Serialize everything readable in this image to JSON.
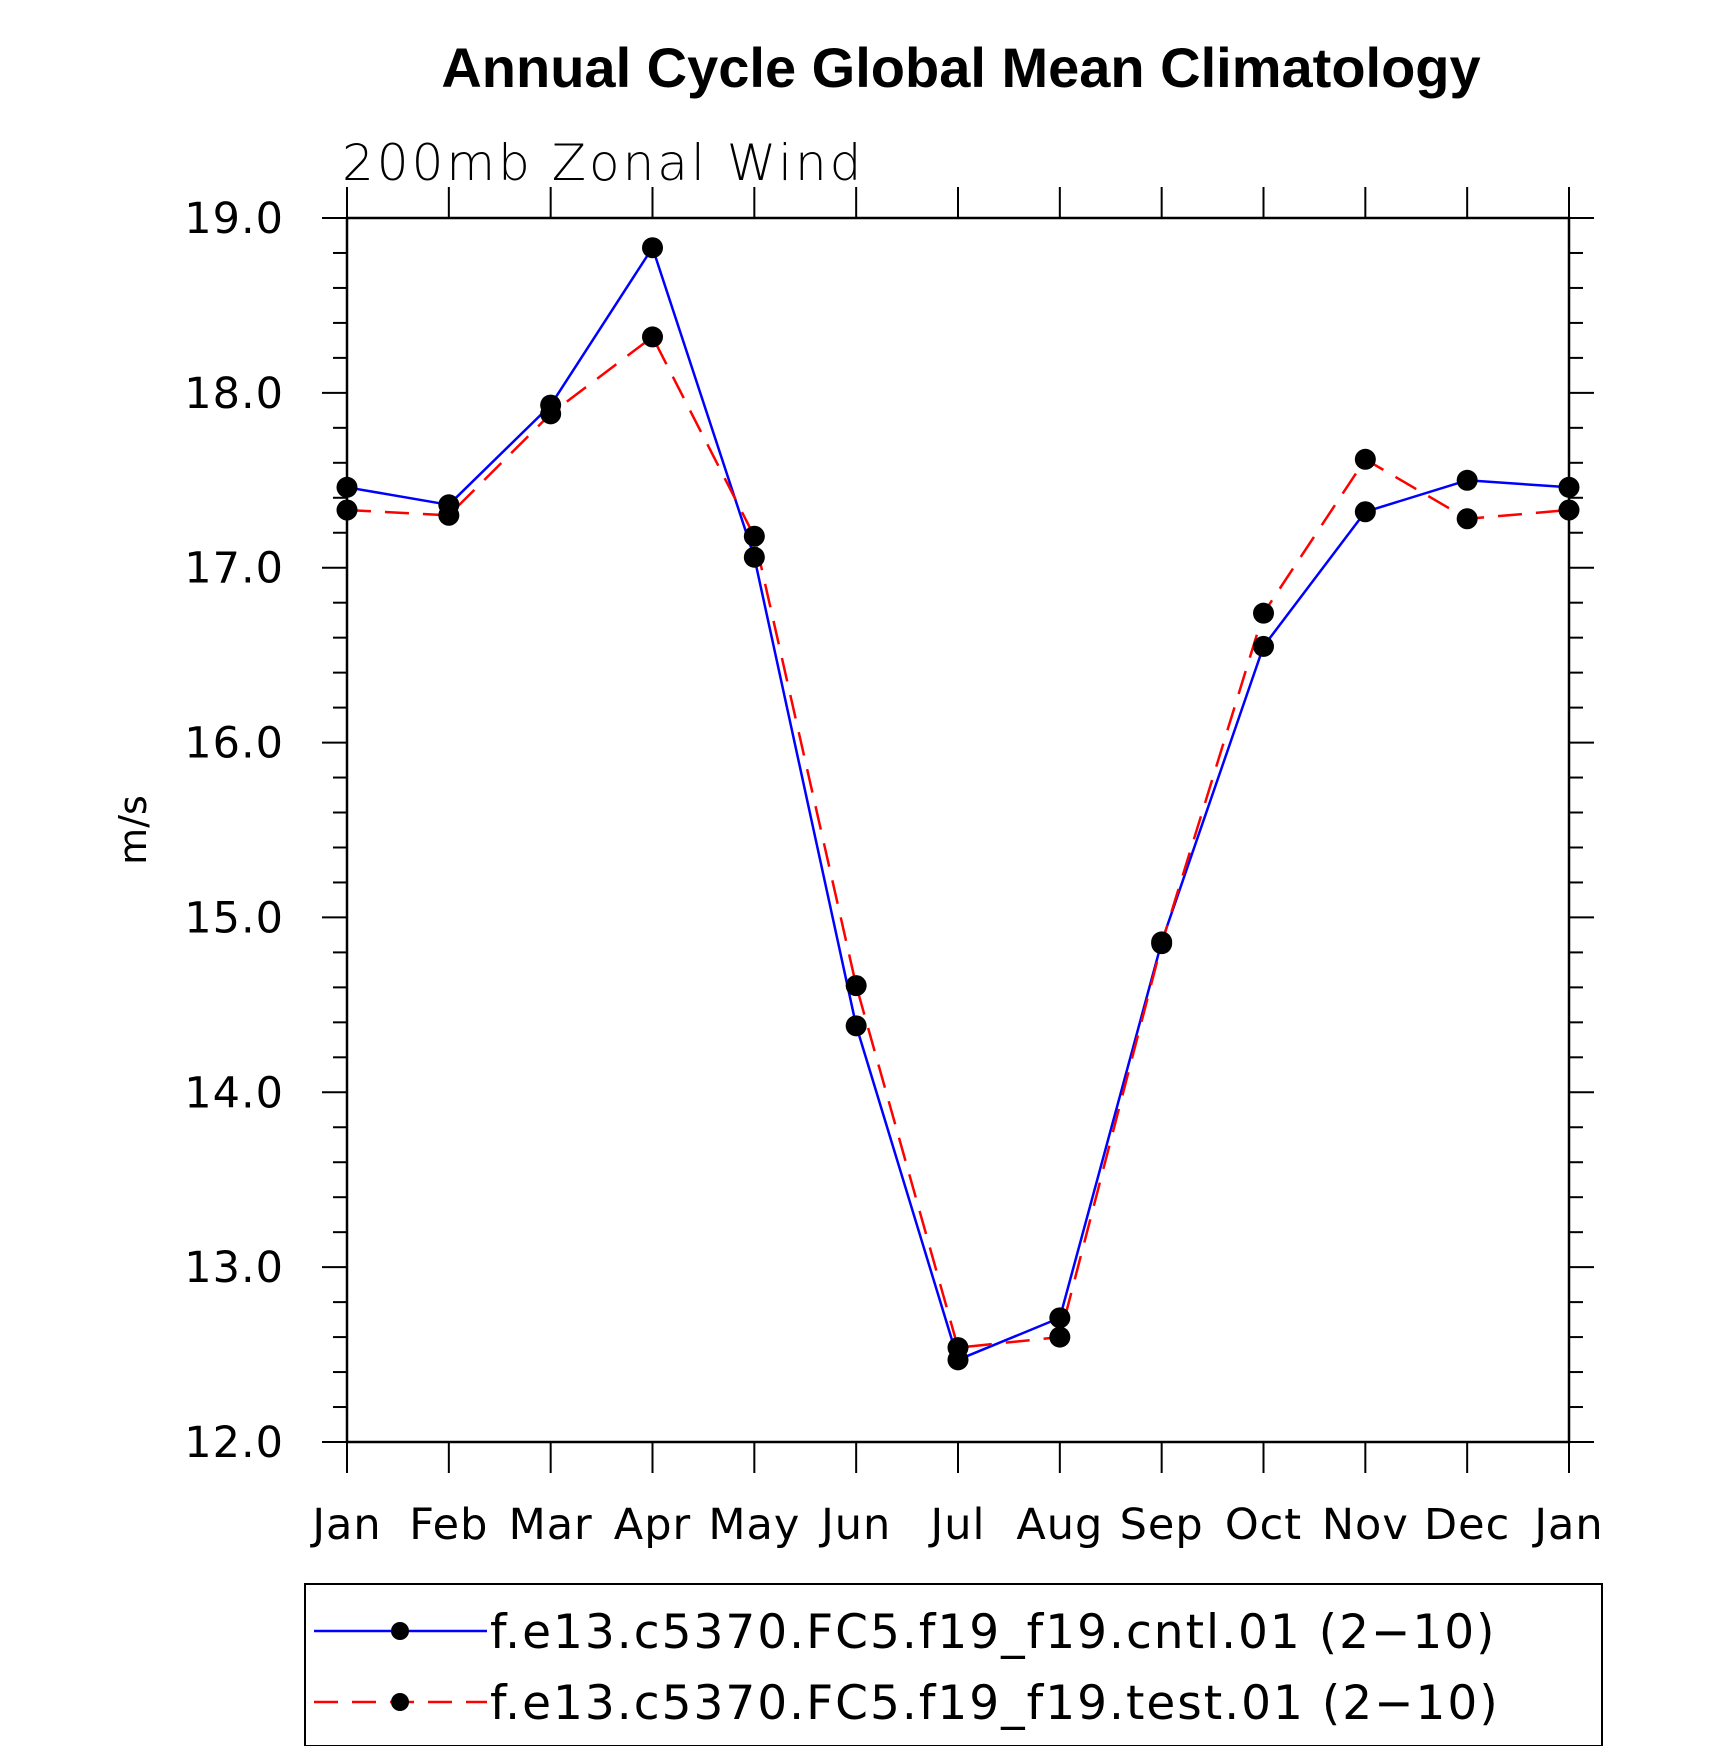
{
  "chart_data": {
    "type": "line",
    "title": "Annual Cycle Global Mean Climatology",
    "subtitle": "200mb Zonal Wind",
    "ylabel": "m/s",
    "xlabel": "",
    "categories": [
      "Jan",
      "Feb",
      "Mar",
      "Apr",
      "May",
      "Jun",
      "Jul",
      "Aug",
      "Sep",
      "Oct",
      "Nov",
      "Dec",
      "Jan"
    ],
    "ylim": [
      12.0,
      19.0
    ],
    "yticks": [
      "12.0",
      "13.0",
      "14.0",
      "15.0",
      "16.0",
      "17.0",
      "18.0",
      "19.0"
    ],
    "grid": false,
    "legend_position": "bottom",
    "series": [
      {
        "name": "f.e13.c5370.FC5.f19_f19.cntl.01 (2−10)",
        "color": "#0000ff",
        "dash": "solid",
        "marker": "dot",
        "values": [
          17.46,
          17.36,
          17.93,
          18.83,
          17.06,
          14.38,
          12.47,
          12.71,
          14.86,
          16.55,
          17.32,
          17.5,
          17.46
        ]
      },
      {
        "name": "f.e13.c5370.FC5.f19_f19.test.01 (2−10)",
        "color": "#ff0000",
        "dash": "dashed",
        "marker": "dot",
        "values": [
          17.33,
          17.3,
          17.88,
          18.32,
          17.18,
          14.61,
          12.54,
          12.6,
          14.85,
          16.74,
          17.62,
          17.28,
          17.33
        ]
      }
    ]
  }
}
